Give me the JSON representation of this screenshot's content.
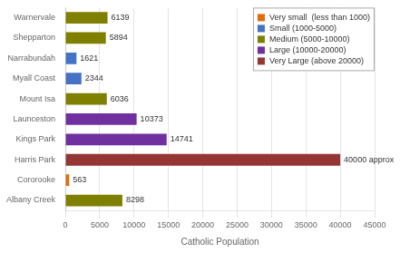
{
  "chart_data": {
    "type": "bar",
    "orientation": "horizontal",
    "categories": [
      "Albany Creek",
      "Cororooke",
      "Harris Park",
      "Kings Park",
      "Launceston",
      "Mount Isa",
      "Myall Coast",
      "Narrabundah",
      "Shepparton",
      "Warnervale"
    ],
    "values": [
      8298,
      563,
      40000,
      14741,
      10373,
      6036,
      2344,
      1621,
      5894,
      6139
    ],
    "colors": [
      "#7f7f00",
      "#e36c0a",
      "#943634",
      "#7030a0",
      "#7030a0",
      "#7f7f00",
      "#4472c4",
      "#4472c4",
      "#7f7f00",
      "#7f7f00"
    ],
    "data_labels": true,
    "value_labels": [
      "8298",
      "563",
      "40000 approx",
      "14741",
      "10373",
      "6036",
      "2344",
      "1621",
      "5894",
      "6139"
    ],
    "xlabel": "Catholic Population",
    "xlim": [
      0,
      45000
    ],
    "xticks": [
      0,
      5000,
      10000,
      15000,
      20000,
      25000,
      30000,
      35000,
      40000,
      45000
    ],
    "grid": true,
    "legend": "upper right",
    "legend_entries": [
      {
        "name": "Very small  (less than 1000)",
        "color": "#e36c0a"
      },
      {
        "name": "Small (1000-5000)",
        "color": "#4472c4"
      },
      {
        "name": "Medium (5000-10000)",
        "color": "#7f7f00"
      },
      {
        "name": "Large (10000-20000)",
        "color": "#7030a0"
      },
      {
        "name": "Very Large (above 20000)",
        "color": "#943634"
      }
    ]
  }
}
